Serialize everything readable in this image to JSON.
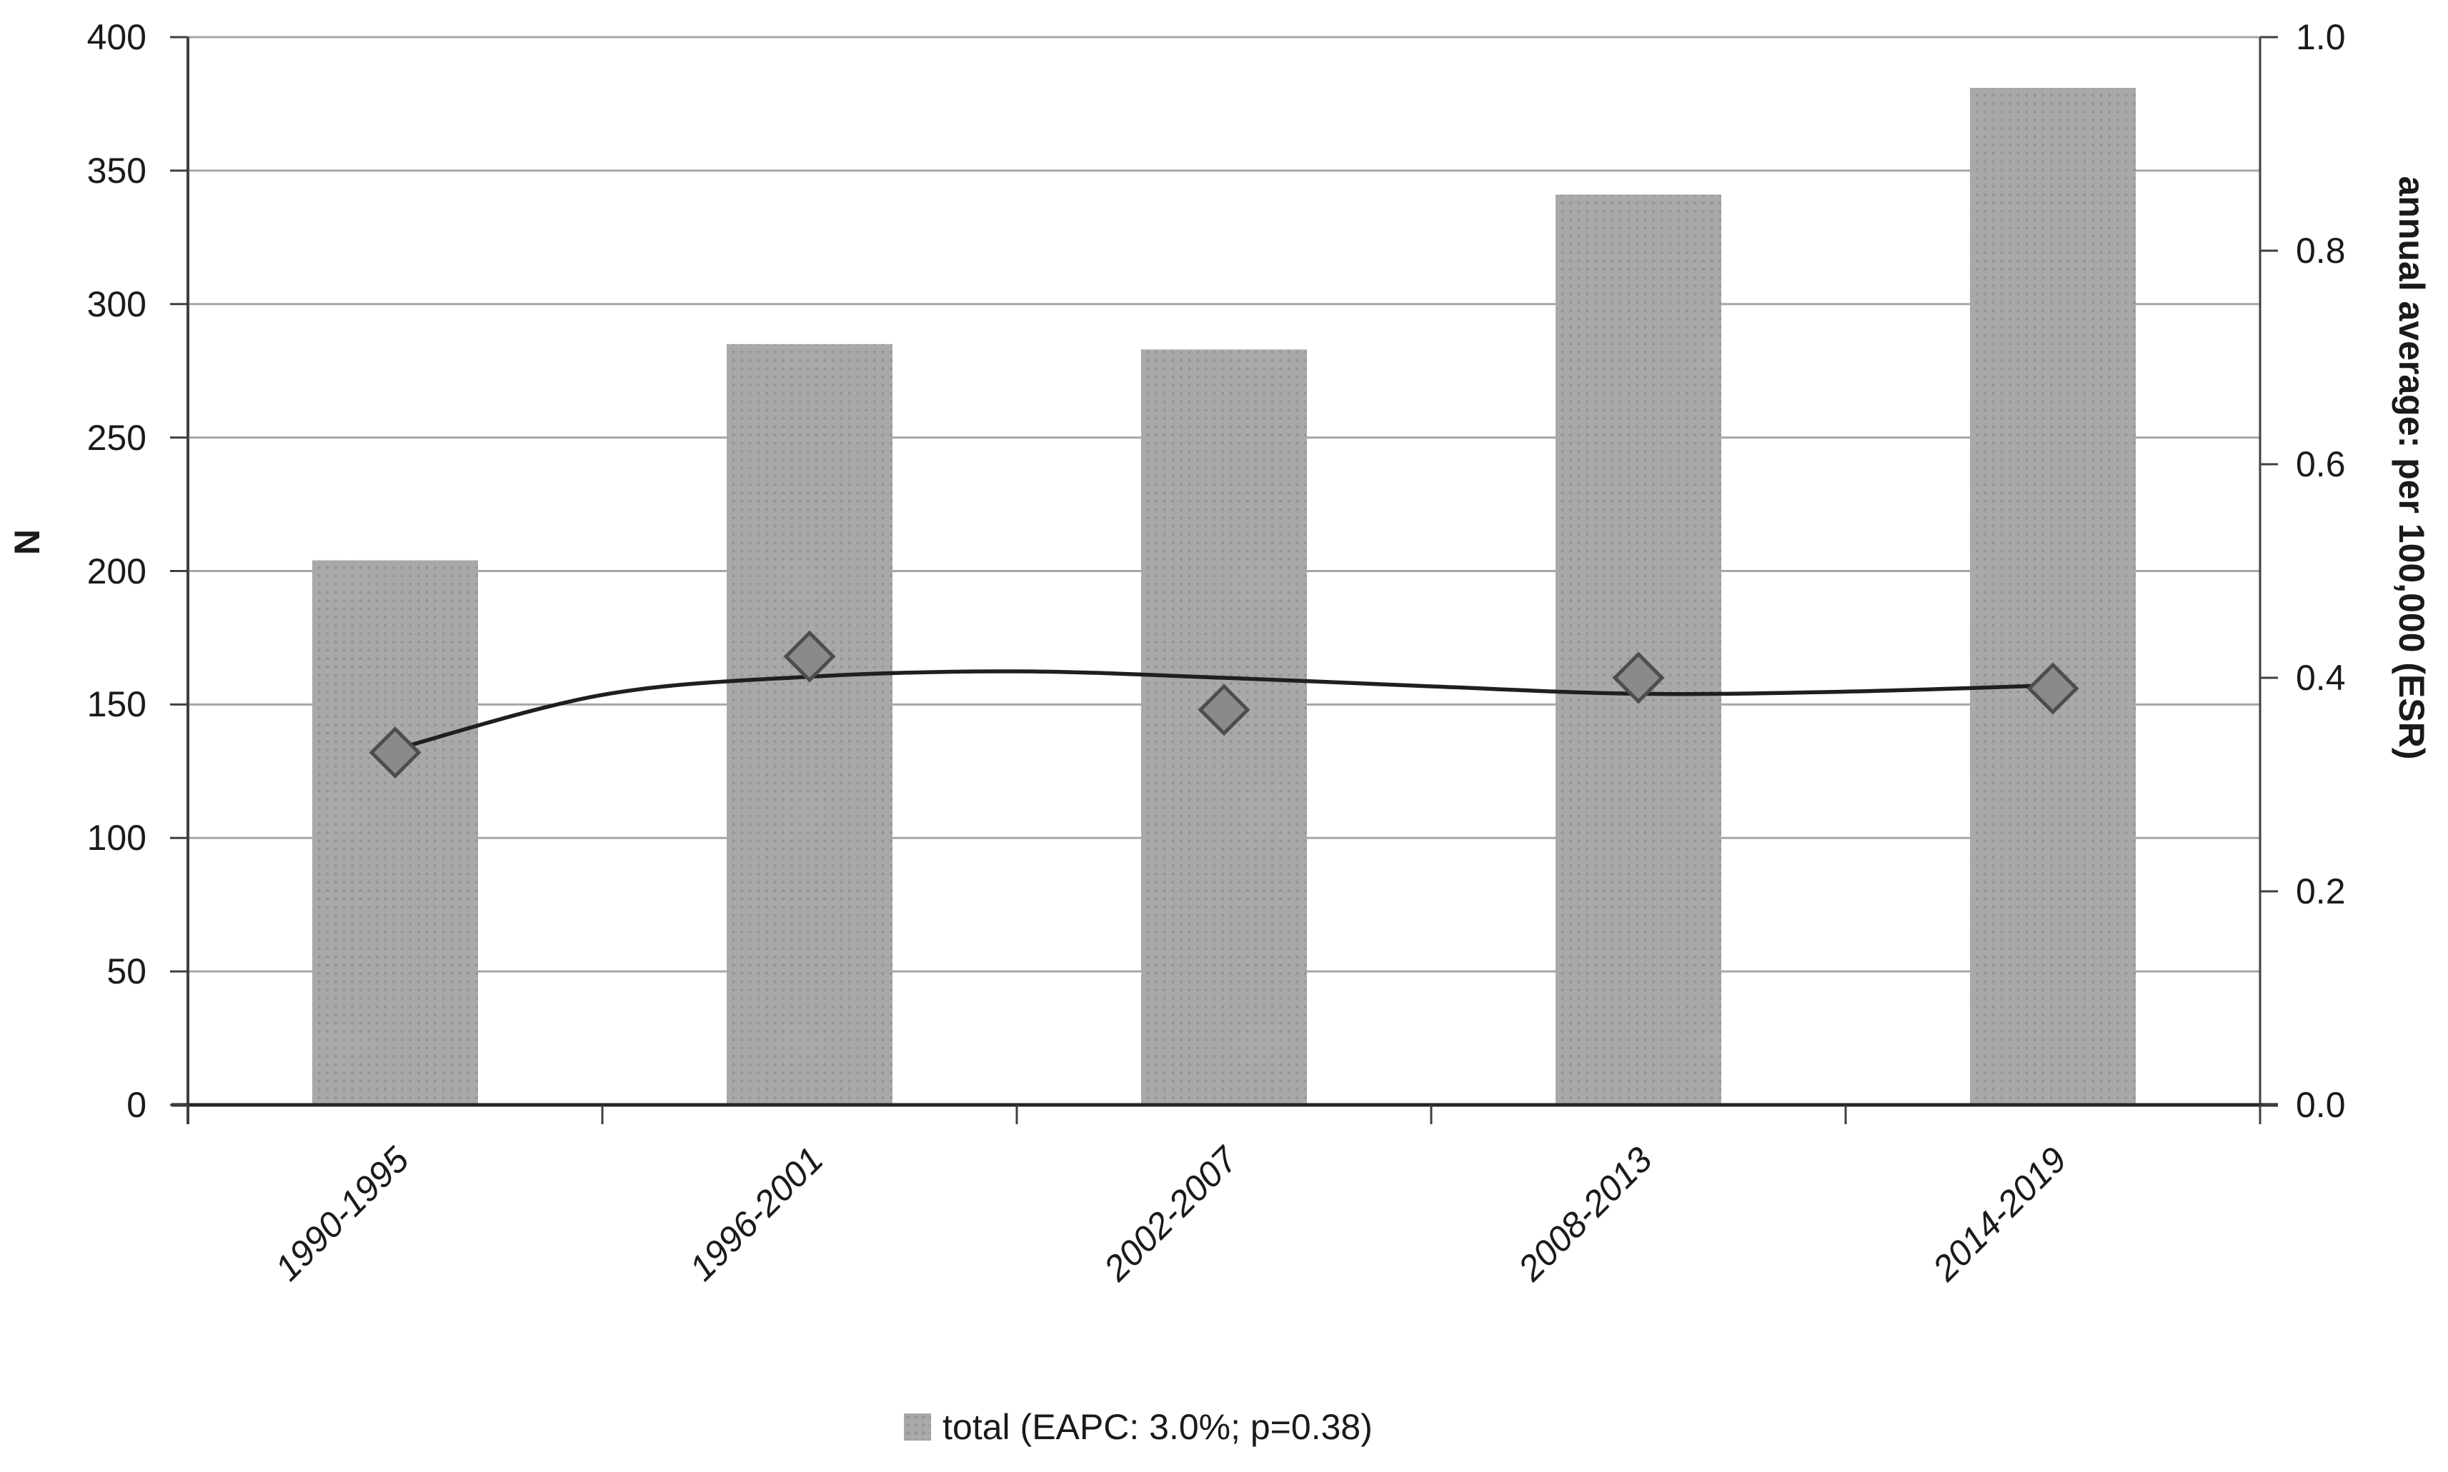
{
  "chart_data": {
    "type": "bar",
    "subtype": "combo-bar-with-diamond-markers-and-trend-line",
    "categories": [
      "1990-1995",
      "1996-2001",
      "2002-2007",
      "2008-2013",
      "2014-2019"
    ],
    "series": [
      {
        "name": "total N (bars, left axis)",
        "type": "bar",
        "axis": "left",
        "values": [
          204,
          285,
          283,
          341,
          381
        ]
      },
      {
        "name": "annual average ESR (diamond markers, right axis)",
        "type": "scatter",
        "axis": "right",
        "values": [
          0.33,
          0.42,
          0.37,
          0.4,
          0.39
        ]
      }
    ],
    "trend_line": {
      "axis": "right",
      "x": [
        1,
        1.5,
        2,
        2.5,
        3,
        3.5,
        4,
        4.5,
        5
      ],
      "y": [
        0.333,
        0.384,
        0.401,
        0.406,
        0.4,
        0.392,
        0.385,
        0.387,
        0.393
      ]
    },
    "left_axis": {
      "label": "N",
      "min": 0,
      "max": 400,
      "tick_step": 50,
      "ticks": [
        "400",
        "350",
        "300",
        "250",
        "200",
        "150",
        "100",
        "50",
        "0"
      ]
    },
    "right_axis": {
      "label": "annual average: per 100,000 (ESR)",
      "min": 0.0,
      "max": 1.0,
      "tick_step": 0.2,
      "ticks": [
        "1.0",
        "0.8",
        "0.6",
        "0.4",
        "0.2",
        "0.0"
      ]
    },
    "legend": {
      "label": "total (EAPC: 3.0%; p=0.38)",
      "position": "bottom-center",
      "swatch": "gray-dotted-square"
    },
    "grid": "horizontal-on",
    "title": "",
    "colors": {
      "bar_fill": "#a9a9a9",
      "bar_dot": "#959595",
      "diamond_fill": "#8a8a8a",
      "diamond_border": "#4d4d4d",
      "trend_line": "#1f1f1f",
      "gridline": "#a6a6a6",
      "axis_line": "#404040",
      "bottom_axis_line": "#262626",
      "text": "#1a1a1a",
      "background": "#ffffff"
    }
  }
}
